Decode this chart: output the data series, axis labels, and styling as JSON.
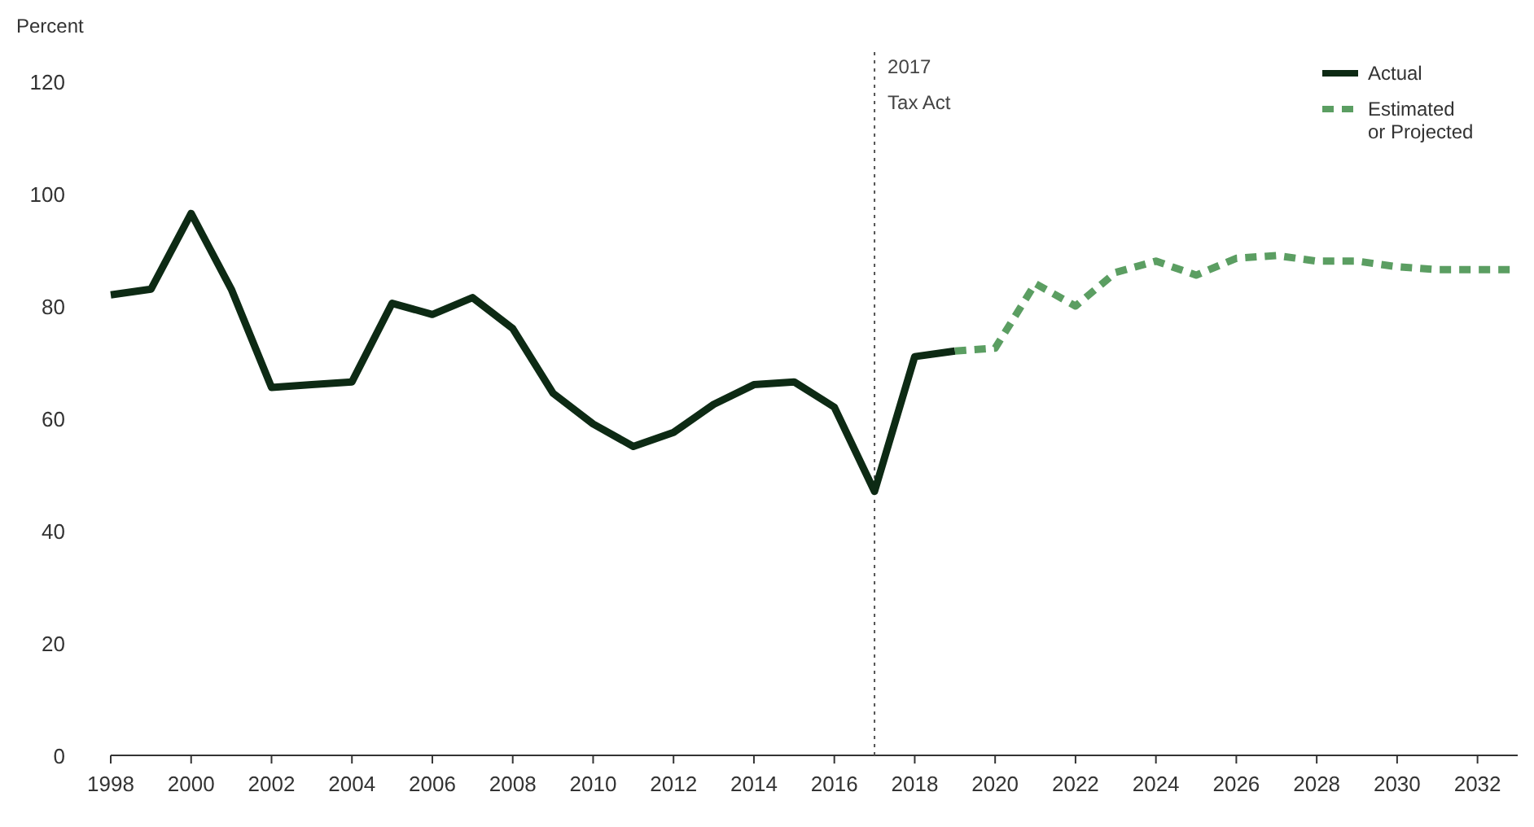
{
  "chart_data": {
    "type": "line",
    "ylabel": "Percent",
    "xlim": [
      1998,
      2033
    ],
    "ylim": [
      0,
      120
    ],
    "xticks": [
      1998,
      2000,
      2002,
      2004,
      2006,
      2008,
      2010,
      2012,
      2014,
      2016,
      2018,
      2020,
      2022,
      2024,
      2026,
      2028,
      2030,
      2032
    ],
    "yticks": [
      0,
      20,
      40,
      60,
      80,
      100,
      120
    ],
    "grid": false,
    "legend": "top right",
    "series": [
      {
        "name": "Actual",
        "color": "#0d2a14",
        "line_style": "solid",
        "x": [
          1998,
          1999,
          2000,
          2001,
          2002,
          2003,
          2004,
          2005,
          2006,
          2007,
          2008,
          2009,
          2010,
          2011,
          2012,
          2013,
          2014,
          2015,
          2016,
          2017,
          2018,
          2019
        ],
        "values": [
          82,
          83,
          96.5,
          83,
          65.5,
          66,
          66.5,
          80.5,
          78.5,
          81.5,
          76,
          64.5,
          59,
          55,
          57.5,
          62.5,
          66,
          66.5,
          62,
          47,
          71,
          72
        ]
      },
      {
        "name": "Estimated\nor Projected",
        "color": "#5b9e62",
        "line_style": "dashed",
        "x": [
          2019,
          2020,
          2021,
          2022,
          2023,
          2024,
          2025,
          2026,
          2027,
          2028,
          2029,
          2030,
          2031,
          2032,
          2033
        ],
        "values": [
          72,
          72.5,
          84,
          80,
          86,
          88,
          85.5,
          88.5,
          89,
          88,
          88,
          87,
          86.5,
          86.5,
          86.5
        ]
      }
    ],
    "ref_lines": [
      {
        "axis": "x",
        "value": 2017,
        "label": "2017\nTax Act",
        "color": "#555555",
        "line_style": "dotted"
      }
    ]
  }
}
